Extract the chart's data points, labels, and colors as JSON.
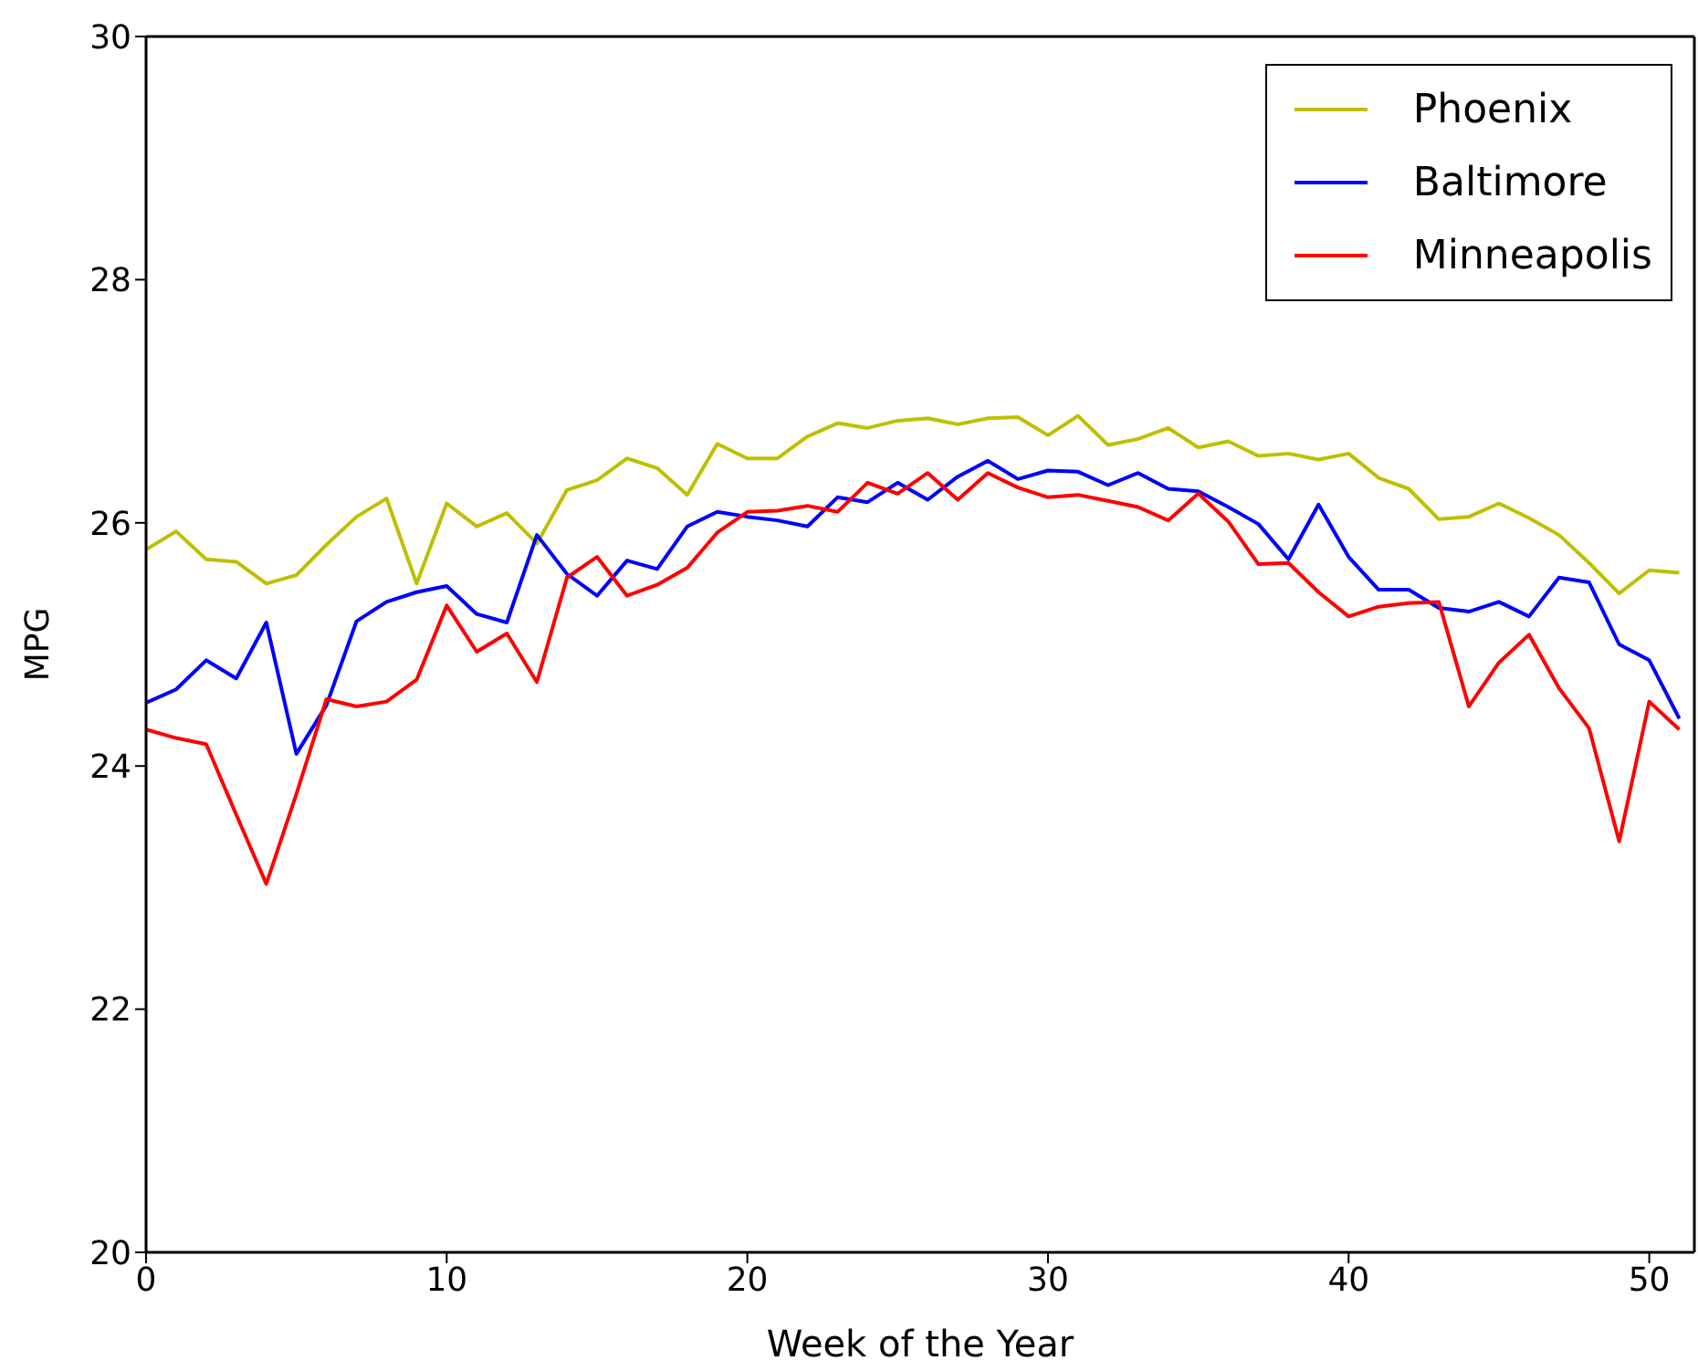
{
  "chart_data": {
    "type": "line",
    "xlabel": "Week of the Year",
    "ylabel": "MPG",
    "x": [
      0,
      1,
      2,
      3,
      4,
      5,
      6,
      7,
      8,
      9,
      10,
      11,
      12,
      13,
      14,
      15,
      16,
      17,
      18,
      19,
      20,
      21,
      22,
      23,
      24,
      25,
      26,
      27,
      28,
      29,
      30,
      31,
      32,
      33,
      34,
      35,
      36,
      37,
      38,
      39,
      40,
      41,
      42,
      43,
      44,
      45,
      46,
      47,
      48,
      49,
      50,
      51
    ],
    "series": [
      {
        "name": "Phoenix",
        "color": "#bfbf00",
        "values": [
          25.78,
          25.93,
          25.7,
          25.68,
          25.5,
          25.57,
          25.82,
          26.05,
          26.2,
          25.5,
          26.16,
          25.97,
          26.08,
          25.83,
          26.27,
          26.35,
          26.53,
          26.45,
          26.23,
          26.65,
          26.53,
          26.53,
          26.71,
          26.82,
          26.78,
          26.84,
          26.86,
          26.81,
          26.86,
          26.87,
          26.72,
          26.88,
          26.64,
          26.69,
          26.78,
          26.62,
          26.67,
          26.55,
          26.57,
          26.52,
          26.57,
          26.37,
          26.28,
          26.03,
          26.05,
          26.16,
          26.04,
          25.9,
          25.67,
          25.42,
          25.61,
          25.59
        ]
      },
      {
        "name": "Baltimore",
        "color": "#0000ff",
        "values": [
          24.52,
          24.63,
          24.87,
          24.72,
          25.18,
          24.1,
          24.5,
          25.19,
          25.35,
          25.43,
          25.48,
          25.25,
          25.18,
          25.9,
          25.58,
          25.4,
          25.69,
          25.62,
          25.97,
          26.09,
          26.05,
          26.02,
          25.97,
          26.21,
          26.17,
          26.33,
          26.19,
          26.38,
          26.51,
          26.36,
          26.43,
          26.42,
          26.31,
          26.41,
          26.28,
          26.26,
          26.13,
          25.99,
          25.7,
          26.15,
          25.72,
          25.45,
          25.45,
          25.3,
          25.27,
          25.35,
          25.23,
          25.55,
          25.51,
          25.0,
          24.87,
          24.39
        ]
      },
      {
        "name": "Minneapolis",
        "color": "#ff0000",
        "values": [
          24.3,
          24.23,
          24.18,
          23.6,
          23.03,
          23.77,
          24.55,
          24.49,
          24.53,
          24.71,
          25.32,
          24.94,
          25.09,
          24.69,
          25.55,
          25.72,
          25.4,
          25.49,
          25.63,
          25.92,
          26.09,
          26.1,
          26.14,
          26.09,
          26.33,
          26.24,
          26.41,
          26.19,
          26.41,
          26.29,
          26.21,
          26.23,
          26.18,
          26.13,
          26.02,
          26.24,
          26.01,
          25.66,
          25.67,
          25.43,
          25.23,
          25.31,
          25.34,
          25.35,
          24.49,
          24.85,
          25.08,
          24.64,
          24.31,
          23.38,
          24.53,
          24.3
        ]
      }
    ],
    "xlim": [
      0,
      51.5
    ],
    "xticks": [
      0,
      10,
      20,
      30,
      40,
      50
    ],
    "ylim": [
      20,
      30
    ],
    "yticks": [
      20,
      22,
      24,
      26,
      28,
      30
    ],
    "grid": false,
    "legend": "top right",
    "marker": "none",
    "line_style": "solid"
  }
}
